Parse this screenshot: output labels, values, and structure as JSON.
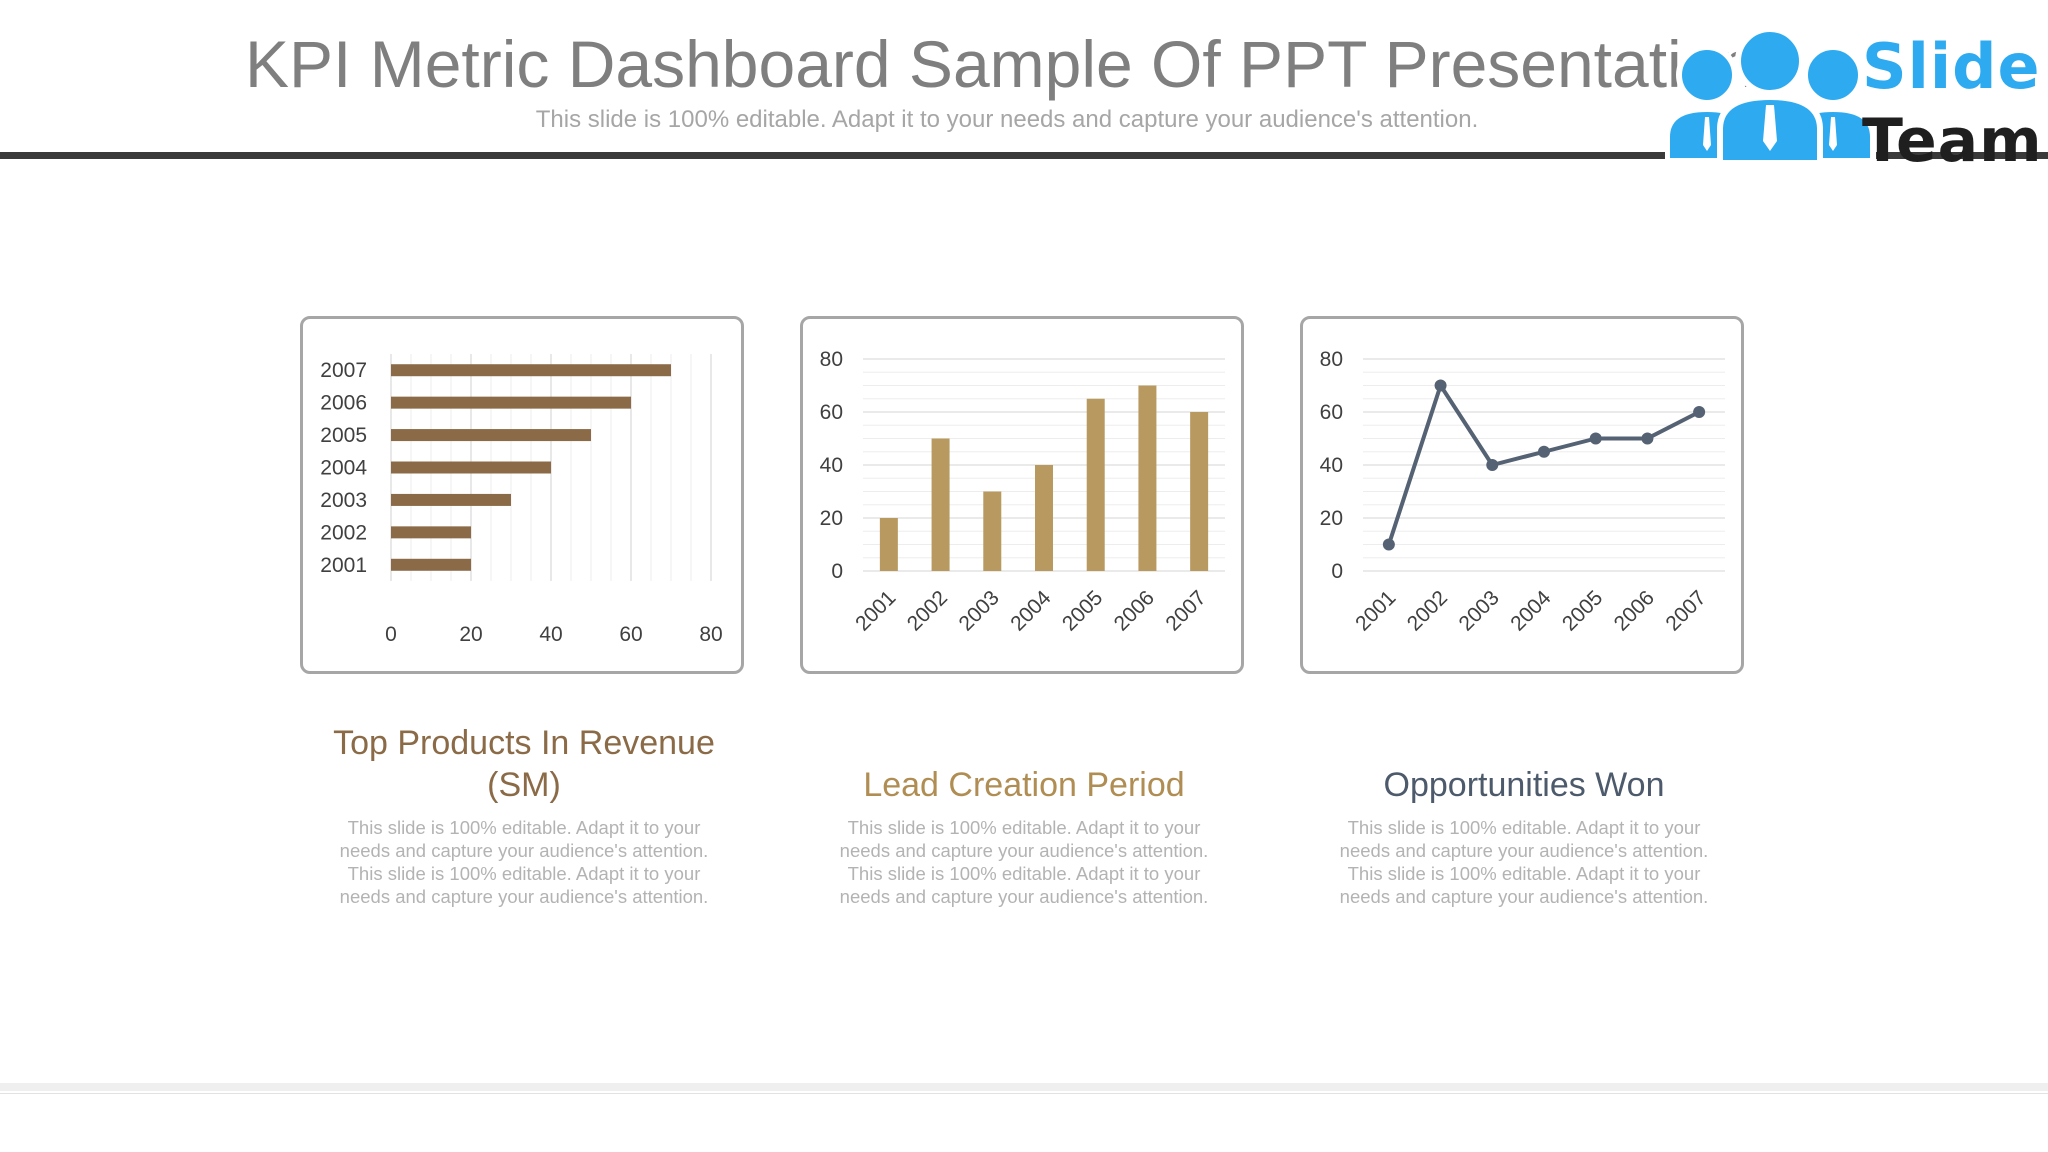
{
  "header": {
    "title": "KPI Metric Dashboard Sample Of PPT Presentation",
    "subtitle": "This slide is 100% editable. Adapt it to your needs and capture your audience's attention."
  },
  "logo": {
    "word1": "Slide",
    "word2": "Team",
    "icon": "people-group-icon"
  },
  "colors": {
    "bar_brown": "#8b6b47",
    "bar_gold": "#b89a61",
    "line_slate": "#546273",
    "title_brown": "#8b6b47",
    "title_gold": "#b08d52",
    "title_slate": "#4d5a6b"
  },
  "panels": [
    {
      "title": "Top Products In Revenue (SM)",
      "description": "This slide is 100% editable. Adapt it to your needs and capture your audience's attention. This slide is 100% editable. Adapt it to your needs and capture your audience's attention."
    },
    {
      "title": "Lead Creation Period",
      "description": "This slide is 100% editable. Adapt it to your needs and capture your audience's attention. This slide is 100% editable. Adapt it to your needs and capture your audience's attention."
    },
    {
      "title": "Opportunities Won",
      "description": "This slide is 100% editable. Adapt it to your needs and capture your audience's attention. This slide is 100% editable. Adapt it to your needs and capture your audience's attention."
    }
  ],
  "chart_data": [
    {
      "type": "bar",
      "orientation": "horizontal",
      "categories": [
        "2001",
        "2002",
        "2003",
        "2004",
        "2005",
        "2006",
        "2007"
      ],
      "values": [
        20,
        20,
        30,
        40,
        50,
        60,
        70
      ],
      "xlim": [
        0,
        80
      ],
      "x_ticks": [
        "0",
        "20",
        "40",
        "60",
        "80"
      ],
      "grid": true
    },
    {
      "type": "bar",
      "orientation": "vertical",
      "categories": [
        "2001",
        "2002",
        "2003",
        "2004",
        "2005",
        "2006",
        "2007"
      ],
      "values": [
        20,
        50,
        30,
        40,
        65,
        70,
        60
      ],
      "ylim": [
        0,
        80
      ],
      "y_ticks": [
        "0",
        "20",
        "40",
        "60",
        "80"
      ],
      "grid": true
    },
    {
      "type": "line",
      "categories": [
        "2001",
        "2002",
        "2003",
        "2004",
        "2005",
        "2006",
        "2007"
      ],
      "values": [
        10,
        70,
        40,
        45,
        50,
        50,
        60
      ],
      "ylim": [
        0,
        80
      ],
      "y_ticks": [
        "0",
        "20",
        "40",
        "60",
        "80"
      ],
      "grid": true
    }
  ]
}
